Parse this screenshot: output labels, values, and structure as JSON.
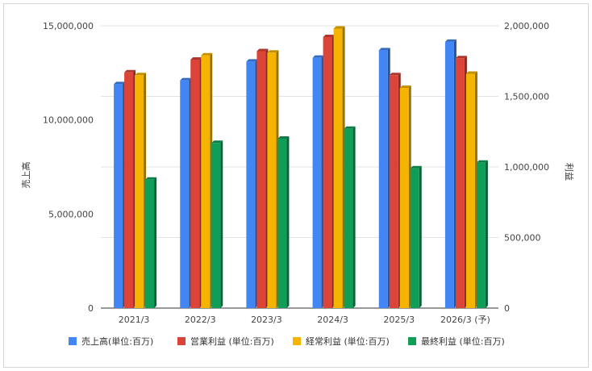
{
  "chart_data": {
    "type": "bar",
    "categories": [
      "2021/3",
      "2022/3",
      "2023/3",
      "2024/3",
      "2025/3",
      "2026/3 (予)"
    ],
    "left_axis": {
      "label": "売上高",
      "ylim": [
        0,
        15000000
      ],
      "ticks": [
        0,
        5000000,
        10000000,
        15000000
      ],
      "tick_labels": [
        "0",
        "5,000,000",
        "10,000,000",
        "15,000,000"
      ]
    },
    "right_axis": {
      "label": "利益",
      "ylim": [
        0,
        2000000
      ],
      "ticks": [
        0,
        500000,
        1000000,
        1500000,
        2000000
      ],
      "tick_labels": [
        "0",
        "500,000",
        "1,000,000",
        "1,500,000",
        "2,000,000"
      ]
    },
    "series": [
      {
        "name": "売上高(単位:百万)",
        "axis": "left",
        "color": "#4285F4",
        "values": [
          11900000,
          12100000,
          13100000,
          13300000,
          13700000,
          14150000
        ]
      },
      {
        "name": "営業利益 (単位:百万)",
        "axis": "right",
        "color": "#DB4437",
        "values": [
          1670000,
          1760000,
          1820000,
          1920000,
          1650000,
          1770000
        ]
      },
      {
        "name": "経常利益 (単位:百万)",
        "axis": "right",
        "color": "#F4B400",
        "values": [
          1650000,
          1790000,
          1810000,
          1980000,
          1560000,
          1660000
        ]
      },
      {
        "name": "最終利益 (単位:百万)",
        "axis": "right",
        "color": "#0F9D58",
        "values": [
          910000,
          1170000,
          1200000,
          1270000,
          990000,
          1030000
        ]
      }
    ],
    "grid": true,
    "legend_position": "bottom"
  }
}
